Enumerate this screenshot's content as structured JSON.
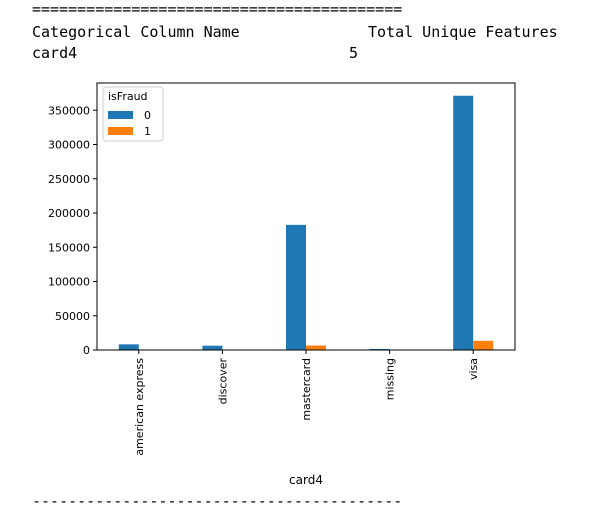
{
  "output": {
    "separator_top": "=========================================",
    "header_col1": "Categorical Column Name",
    "header_col2": "Total Unique Features",
    "row_col1": "card4",
    "row_col2": "5",
    "separator_bottom": "-----------------------------------------"
  },
  "chart_data": {
    "type": "bar",
    "categories": [
      "american express",
      "discover",
      "mastercard",
      "missing",
      "visa"
    ],
    "series": [
      {
        "name": "0",
        "values": [
          8300,
          6300,
          182700,
          1500,
          371200
        ],
        "color": "#1f77b4"
      },
      {
        "name": "1",
        "values": [
          330,
          150,
          6500,
          50,
          13400
        ],
        "color": "#ff7f0e"
      }
    ],
    "xlabel": "card4",
    "ylabel": "",
    "ylim": [
      0,
      389800
    ],
    "yticks": [
      0,
      50000,
      100000,
      150000,
      200000,
      250000,
      300000,
      350000
    ],
    "legend": {
      "title": "isFraud",
      "placement": "top-left"
    },
    "grid": false
  }
}
